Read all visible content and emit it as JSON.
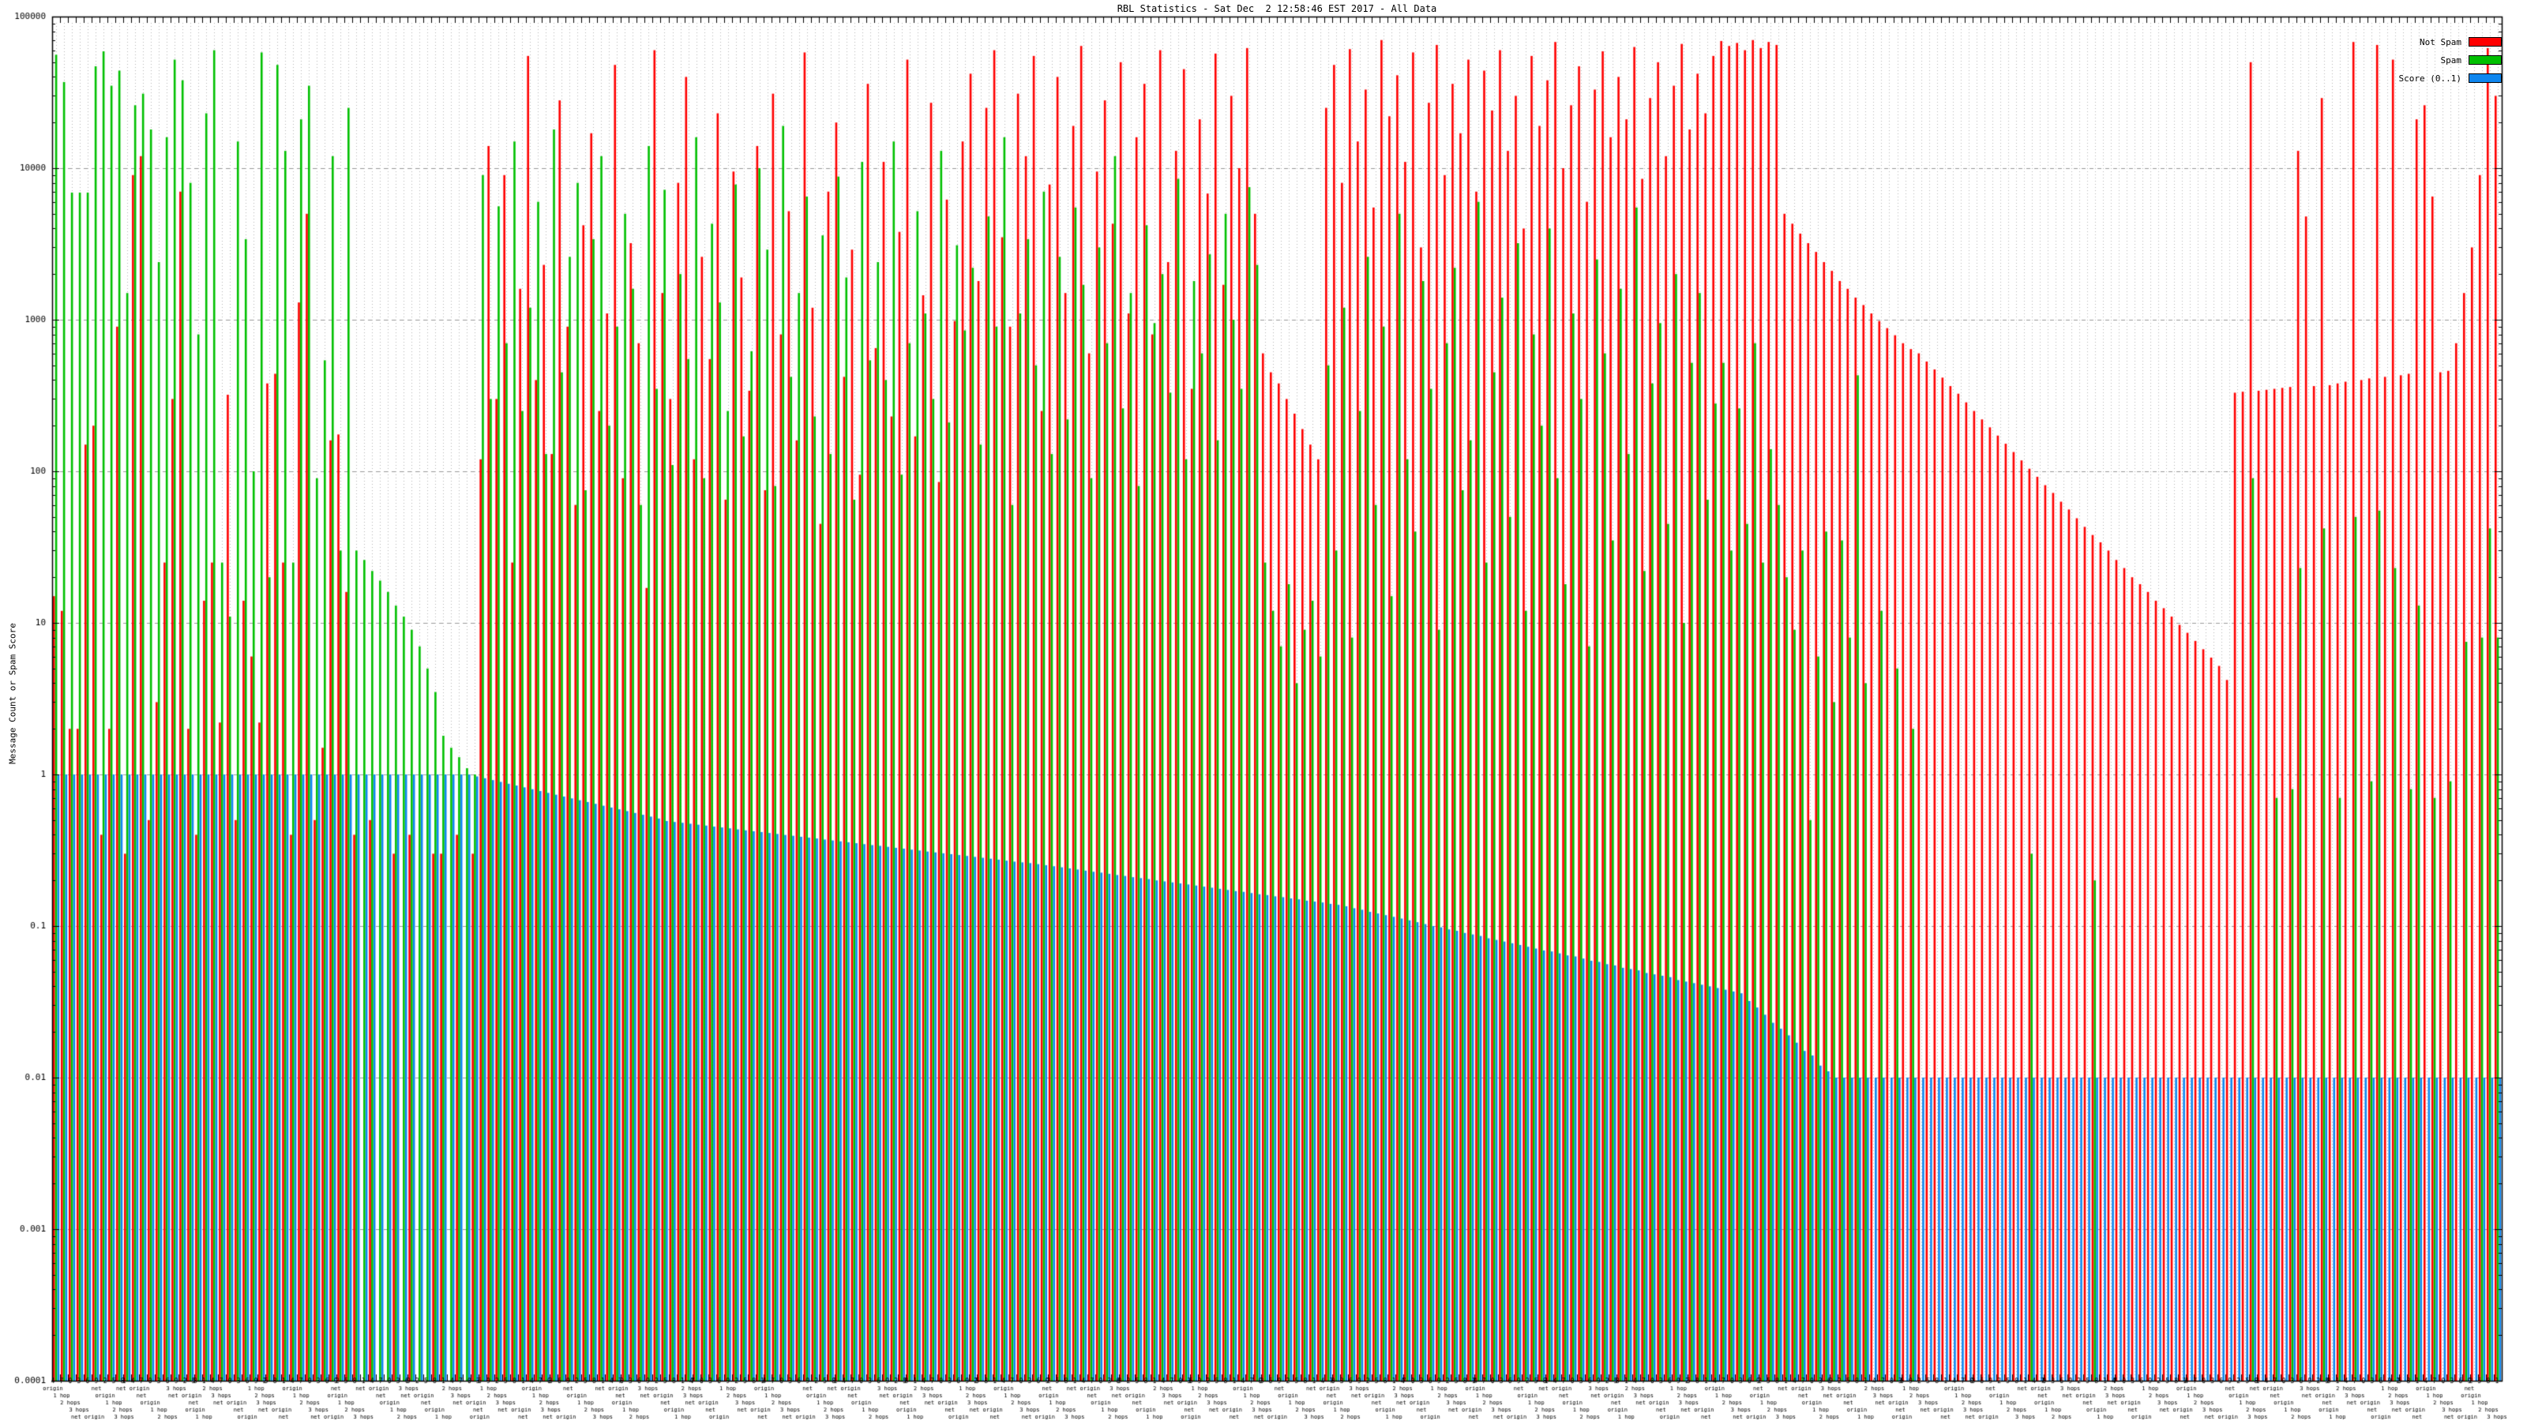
{
  "title": "RBL Statistics - Sat Dec  2 12:58:46 EST 2017 - All Data",
  "y_axis": {
    "label": "Message Count or Spam Score",
    "ticks": [
      "100000",
      "10000",
      "1000",
      "100",
      "10",
      "1",
      "0.1",
      "0.01",
      "0.001",
      "0.0001"
    ]
  },
  "x_axis": {
    "labels_legible": false,
    "visible_fragments": [
      "origin",
      "1 hop",
      "2 hops",
      "3 hops",
      "net origin",
      "net"
    ],
    "tick_label_tokens": [
      "origin",
      "1 hop",
      "2 hops",
      "3 hops",
      "net origin",
      "net"
    ]
  },
  "legend": [
    {
      "label": "Not Spam",
      "color": "#ff0000"
    },
    {
      "label": "Spam",
      "color": "#00c000"
    },
    {
      "label": "Score (0..1)",
      "color": "#0e86ef"
    }
  ],
  "colors": {
    "not_spam": "#ff0000",
    "spam": "#00c000",
    "score": "#0e86ef",
    "grid_major": "#999999",
    "grid_minor": "#b4b4b4",
    "border": "#000000"
  },
  "chart_data": {
    "type": "bar",
    "title": "RBL Statistics - Sat Dec  2 12:58:46 EST 2017 - All Data",
    "xlabel": "",
    "ylabel": "Message Count or Spam Score",
    "yscale": "log",
    "ylim": [
      0.0001,
      100000
    ],
    "grid": true,
    "legend_position": "top-right-inside",
    "n_categories": 310,
    "series": [
      {
        "name": "Not Spam",
        "color": "#ff0000",
        "values": [
          15,
          12,
          2,
          2,
          150,
          200,
          0.4,
          2,
          900,
          0.3,
          9000,
          12000,
          0.5,
          3,
          25,
          300,
          7000,
          2,
          0.4,
          14,
          25,
          2.2,
          320,
          0.5,
          14,
          6,
          2.2,
          380,
          440,
          25,
          0.4,
          1300,
          5000,
          0.5,
          1.5,
          160,
          175,
          16,
          0.4,
          0,
          0.5,
          0,
          0,
          0.3,
          0,
          0.4,
          0,
          0,
          0.3,
          0.3,
          0,
          0.4,
          0,
          0.3,
          120,
          14000,
          300,
          9000,
          25,
          1600,
          55000,
          400,
          2300,
          130,
          28000,
          900,
          60,
          4200,
          17000,
          250,
          1100,
          48000,
          90,
          3200,
          700,
          17,
          60000,
          1500,
          300,
          8000,
          40000,
          120,
          2600,
          550,
          23000,
          65,
          9500,
          1900,
          340,
          14000,
          75,
          31000,
          800,
          5200,
          160,
          58000,
          1200,
          45,
          7000,
          20000,
          420,
          2900,
          95,
          36000,
          650,
          11000,
          230,
          3800,
          52000,
          170,
          1450,
          27000,
          85,
          6200,
          980,
          15000,
          42000,
          1800,
          25000,
          60000,
          3500,
          900,
          31000,
          12000,
          55000,
          250,
          7800,
          40000,
          1500,
          19000,
          64000,
          600,
          9500,
          28000,
          4300,
          50000,
          1100,
          16000,
          36000,
          800,
          60000,
          2400,
          13000,
          45000,
          350,
          21000,
          6800,
          57000,
          1700,
          30000,
          10000,
          62000,
          5000,
          600,
          450,
          380,
          300,
          240,
          190,
          150,
          120,
          25000,
          48000,
          8000,
          61000,
          15000,
          33000,
          5500,
          70000,
          22000,
          41000,
          11000,
          58000,
          3000,
          27000,
          65000,
          9000,
          36000,
          17000,
          52000,
          7000,
          44000,
          24000,
          60000,
          13000,
          30000,
          4000,
          55000,
          19000,
          38000,
          68000,
          10000,
          26000,
          47000,
          6000,
          33000,
          59000,
          16000,
          40000,
          21000,
          63000,
          8500,
          29000,
          50000,
          12000,
          35000,
          66000,
          18000,
          42000,
          23000,
          55000,
          69000,
          64000,
          67000,
          60000,
          70000,
          62000,
          68000,
          65000,
          5000,
          4300,
          3700,
          3200,
          2800,
          2400,
          2100,
          1800,
          1600,
          1400,
          1250,
          1100,
          980,
          880,
          790,
          700,
          640,
          600,
          530,
          470,
          415,
          365,
          325,
          285,
          250,
          220,
          195,
          172,
          152,
          134,
          118,
          104,
          92,
          81,
          72,
          63,
          56,
          49,
          43,
          38,
          34,
          30,
          26,
          23,
          20,
          18,
          16,
          14,
          12.5,
          11,
          9.7,
          8.6,
          7.6,
          6.7,
          5.9,
          5.2,
          4.2,
          330,
          335,
          50000,
          340,
          345,
          350,
          355,
          360,
          13000,
          4800,
          365,
          29000,
          370,
          380,
          390,
          68000,
          400,
          410,
          65000,
          420,
          52000,
          430,
          440,
          21000,
          26000,
          6500,
          450,
          460,
          700,
          1500,
          3000,
          9000,
          62000,
          30000
        ]
      },
      {
        "name": "Spam",
        "color": "#00c000",
        "values": [
          56000,
          37000,
          6900,
          6900,
          6900,
          47000,
          59000,
          35000,
          44000,
          1500,
          26000,
          31000,
          18000,
          2400,
          16000,
          52000,
          38000,
          8000,
          800,
          23000,
          60000,
          25,
          11,
          15000,
          3400,
          100,
          58000,
          20,
          48000,
          13000,
          25,
          21000,
          35000,
          90,
          540,
          12000,
          30,
          25000,
          30,
          26,
          22,
          19,
          16,
          13,
          11,
          9,
          7,
          5,
          3.5,
          1.8,
          1.5,
          1.3,
          1.1,
          1,
          9000,
          300,
          5600,
          700,
          15000,
          250,
          1200,
          6000,
          130,
          18000,
          450,
          2600,
          8000,
          75,
          3400,
          12000,
          200,
          900,
          5000,
          1600,
          60,
          14000,
          350,
          7200,
          110,
          2000,
          550,
          16000,
          90,
          4300,
          1300,
          250,
          7800,
          170,
          620,
          10000,
          2900,
          80,
          19000,
          420,
          1500,
          6500,
          230,
          3600,
          130,
          8800,
          1900,
          65,
          11000,
          540,
          2400,
          400,
          15000,
          95,
          700,
          5200,
          1100,
          300,
          13000,
          210,
          3100,
          850,
          2200,
          150,
          4800,
          900,
          16000,
          60,
          1100,
          3400,
          500,
          7000,
          130,
          2600,
          220,
          5500,
          1700,
          90,
          3000,
          700,
          12000,
          260,
          1500,
          80,
          4200,
          950,
          2000,
          330,
          8500,
          120,
          1800,
          600,
          2700,
          160,
          5000,
          1000,
          350,
          7500,
          2300,
          25,
          12,
          7,
          18,
          4,
          9,
          14,
          6,
          500,
          30,
          1200,
          8,
          250,
          2600,
          60,
          900,
          15,
          5000,
          120,
          40,
          1800,
          350,
          9,
          700,
          2200,
          75,
          160,
          6000,
          25,
          450,
          1400,
          50,
          3200,
          12,
          800,
          200,
          4000,
          90,
          18,
          1100,
          300,
          7,
          2500,
          600,
          35,
          1600,
          130,
          5500,
          22,
          380,
          950,
          45,
          2000,
          10,
          520,
          1500,
          65,
          280,
          520,
          30,
          260,
          45,
          700,
          25,
          140,
          60,
          20,
          9,
          30,
          0.5,
          6,
          40,
          3,
          35,
          8,
          430,
          4,
          0,
          12,
          0,
          5,
          0,
          2,
          0,
          0,
          0,
          0,
          0,
          0,
          0,
          0,
          0,
          0,
          0,
          0,
          0,
          0,
          0.3,
          0,
          0,
          0,
          0,
          0,
          0,
          0,
          0.2,
          0,
          0,
          0,
          0,
          0,
          0,
          0,
          0,
          0,
          0,
          0,
          0,
          0,
          0,
          0,
          0,
          0,
          0,
          0,
          90,
          0,
          0,
          0.7,
          0,
          0.8,
          23,
          0,
          0,
          42,
          0,
          0.7,
          0,
          50,
          0,
          0.9,
          55,
          0,
          23,
          0,
          0.8,
          13,
          0,
          0.7,
          0,
          0.9,
          0,
          7.5,
          0,
          8,
          42,
          8
        ]
      },
      {
        "name": "Score (0..1)",
        "color": "#0e86ef",
        "values": [
          1,
          1,
          1,
          1,
          1,
          1,
          1,
          1,
          1,
          1,
          1,
          1,
          1,
          1,
          1,
          1,
          1,
          1,
          1,
          1,
          1,
          1,
          1,
          1,
          1,
          1,
          1,
          1,
          1,
          1,
          1,
          1,
          1,
          1,
          1,
          1,
          1,
          1,
          1,
          1,
          1,
          1,
          1,
          1,
          1,
          1,
          1,
          1,
          1,
          1,
          1,
          1,
          1,
          0.97,
          0.944,
          0.918,
          0.893,
          0.868,
          0.845,
          0.822,
          0.799,
          0.777,
          0.756,
          0.735,
          0.715,
          0.695,
          0.676,
          0.658,
          0.64,
          0.622,
          0.605,
          0.589,
          0.573,
          0.557,
          0.542,
          0.527,
          0.512,
          0.493,
          0.486,
          0.48,
          0.473,
          0.466,
          0.46,
          0.453,
          0.447,
          0.441,
          0.434,
          0.428,
          0.422,
          0.417,
          0.411,
          0.405,
          0.399,
          0.394,
          0.388,
          0.383,
          0.378,
          0.372,
          0.367,
          0.362,
          0.357,
          0.352,
          0.347,
          0.342,
          0.338,
          0.333,
          0.328,
          0.324,
          0.319,
          0.315,
          0.31,
          0.306,
          0.302,
          0.298,
          0.294,
          0.29,
          0.286,
          0.282,
          0.278,
          0.274,
          0.27,
          0.266,
          0.263,
          0.26,
          0.256,
          0.252,
          0.248,
          0.244,
          0.24,
          0.236,
          0.232,
          0.228,
          0.225,
          0.221,
          0.217,
          0.214,
          0.21,
          0.207,
          0.204,
          0.2,
          0.197,
          0.194,
          0.191,
          0.188,
          0.185,
          0.182,
          0.179,
          0.176,
          0.173,
          0.17,
          0.168,
          0.165,
          0.162,
          0.16,
          0.157,
          0.155,
          0.152,
          0.15,
          0.147,
          0.145,
          0.143,
          0.14,
          0.138,
          0.135,
          0.131,
          0.128,
          0.124,
          0.121,
          0.118,
          0.115,
          0.112,
          0.109,
          0.106,
          0.103,
          0.1,
          0.098,
          0.095,
          0.093,
          0.09,
          0.088,
          0.086,
          0.083,
          0.081,
          0.079,
          0.077,
          0.075,
          0.073,
          0.071,
          0.069,
          0.068,
          0.066,
          0.064,
          0.063,
          0.061,
          0.059,
          0.058,
          0.056,
          0.055,
          0.053,
          0.052,
          0.051,
          0.049,
          0.048,
          0.047,
          0.046,
          0.044,
          0.043,
          0.042,
          0.041,
          0.04,
          0.039,
          0.038,
          0.037,
          0.036,
          0.032,
          0.029,
          0.026,
          0.023,
          0.021,
          0.019,
          0.017,
          0.015,
          0.014,
          0.012,
          0.011,
          0.01,
          0.01,
          0.01,
          0.01,
          0.01,
          0.01,
          0.01,
          0.01,
          0.01,
          0.01,
          0.01,
          0.01,
          0.01,
          0.01,
          0.01,
          0.01,
          0.01,
          0.01,
          0.01,
          0.01,
          0.01,
          0.01,
          0.01,
          0.01,
          0.01,
          0.01,
          0.01,
          0.01,
          0.01,
          0.01,
          0.01,
          0.01,
          0.01,
          0.01,
          0.01,
          0.01,
          0.01,
          0.01,
          0.01,
          0.01,
          0.01,
          0.01,
          0.01,
          0.01,
          0.01,
          0.01,
          0.01,
          0.01,
          0.01,
          0.01,
          0.01,
          0.01,
          0.01,
          0.01,
          0.01,
          0.01,
          0.01,
          0.01,
          0.01,
          0.01,
          0.01,
          0.01,
          0.01,
          0.01,
          0.01,
          0.01,
          0.01,
          0.01,
          0.01,
          0.01,
          0.01,
          0.01,
          0.01,
          0.01,
          0.01,
          0.01,
          0.01,
          0.01,
          0.01,
          0.01,
          0.01,
          0.01,
          0.01,
          0.01,
          0.01
        ]
      }
    ]
  }
}
